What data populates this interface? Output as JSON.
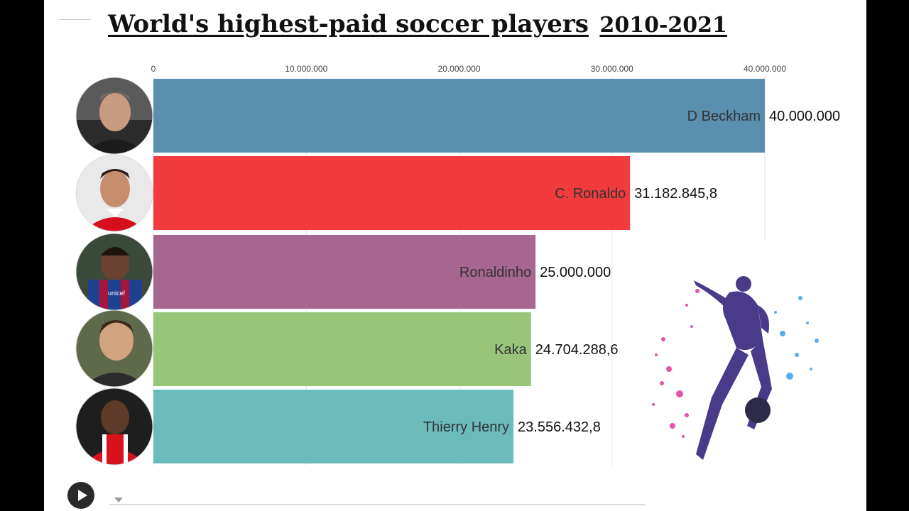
{
  "title": "World's highest-paid soccer players",
  "year_range": "2010-2021",
  "colors": {
    "D Beckham": "#5a8fb0",
    "C. Ronaldo": "#f23b3c",
    "Ronaldinho": "#a7668f",
    "Kaka": "#98c57a",
    "Thierry Henry": "#6bbbbc"
  },
  "icons": {
    "player_photos": [
      "d-beckham-photo-icon",
      "c-ronaldo-photo-icon",
      "ronaldinho-photo-icon",
      "kaka-photo-icon",
      "thierry-henry-photo-icon"
    ],
    "decoration": "soccer-player-splash-icon",
    "play": "play-icon"
  },
  "chart_data": {
    "type": "bar",
    "orientation": "horizontal",
    "title": "World's highest-paid soccer players",
    "subtitle": "2010-2021",
    "categories": [
      "D Beckham",
      "C. Ronaldo",
      "Ronaldinho",
      "Kaka",
      "Thierry Henry"
    ],
    "values": [
      40000000,
      31182845.8,
      25000000,
      24704288.6,
      23556432.8
    ],
    "value_labels": [
      "40.000.000",
      "31.182.845,8",
      "25.000.000",
      "24.704.288,6",
      "23.556.432,8"
    ],
    "xlim": [
      0,
      40000000
    ],
    "x_ticks": [
      0,
      10000000,
      20000000,
      30000000,
      40000000
    ],
    "x_tick_labels": [
      "0",
      "10.000.000",
      "20.000.000",
      "30.000.000",
      "40.000.000"
    ],
    "grid": true,
    "legend": "none"
  }
}
